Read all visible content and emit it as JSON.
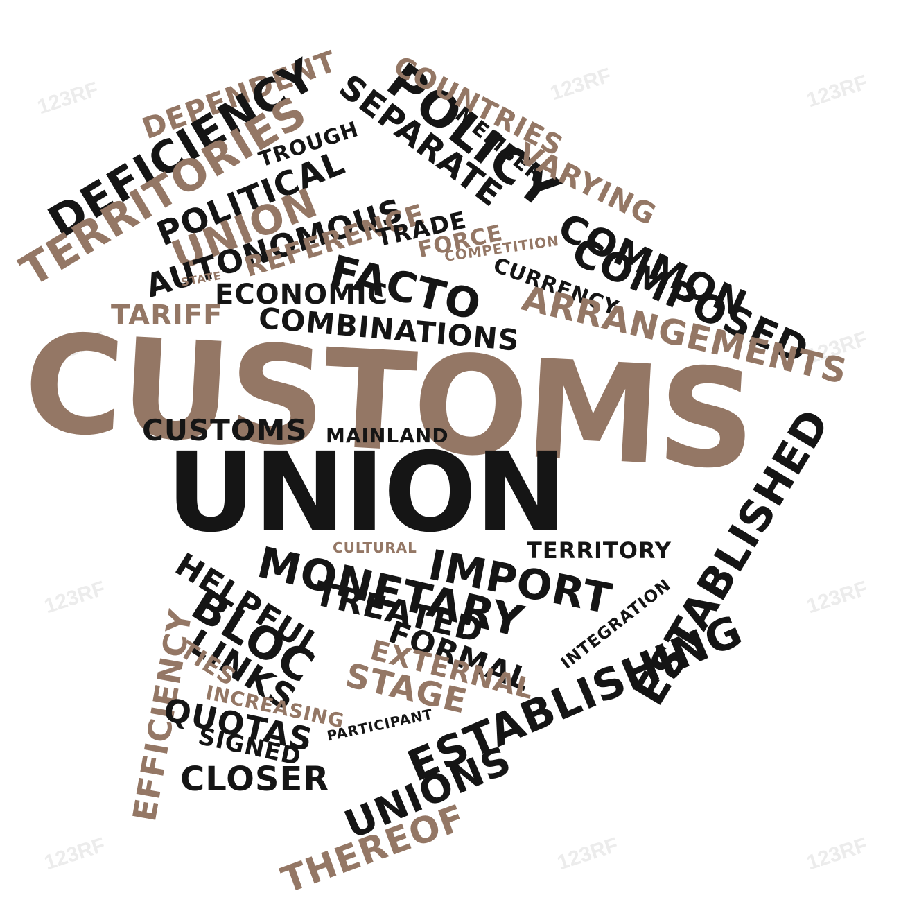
{
  "colors": {
    "dark": "#151515",
    "brown": "#947765",
    "background": "#ffffff"
  },
  "watermark": "123RF",
  "words": {
    "dependent": "DEPENDENT",
    "deficiency": "DEFICIENCY",
    "territories": "TERRITORIES",
    "trough": "TROUGH",
    "political": "POLITICAL",
    "union_small": "UNION",
    "separate": "SEPARATE",
    "policy": "POLICY",
    "countries": "COUNTRIES",
    "member": "MEMBER",
    "varying": "VARYING",
    "autonomous": "AUTONOMOUS",
    "reference": "REFERENCE",
    "trade": "TRADE",
    "force": "FORCE",
    "competition": "COMPETITION",
    "common": "COMMON",
    "state": "STATE",
    "facto": "FACTO",
    "currency": "CURRENCY",
    "composed": "COMPOSED",
    "economic": "ECONOMIC",
    "arrangements": "ARRANGEMENTS",
    "tariff": "TARIFF",
    "combinations": "COMBINATIONS",
    "customs_big": "CUSTOMS",
    "customs_small": "CUSTOMS",
    "mainland": "MAINLAND",
    "union_big": "UNION",
    "established": "ESTABLISHED",
    "cultural": "CULTURAL",
    "territory": "TERRITORY",
    "import": "IMPORT",
    "monetary": "MONETARY",
    "helpful": "HELPFUL",
    "treated": "TREATED",
    "bloc": "BLOC",
    "integration": "INTEGRATION",
    "efficiency": "EFFICIENCY",
    "formal": "FORMAL",
    "links": "LINKS",
    "external": "EXTERNAL",
    "ties": "TIES",
    "stage": "STAGE",
    "increasing": "INCREASING",
    "establishing": "ESTABLISHING",
    "quotas": "QUOTAS",
    "participant": "PARTICIPANT",
    "signed": "SIGNED",
    "closer": "CLOSER",
    "unions": "UNIONS",
    "thereof": "THEREOF"
  }
}
